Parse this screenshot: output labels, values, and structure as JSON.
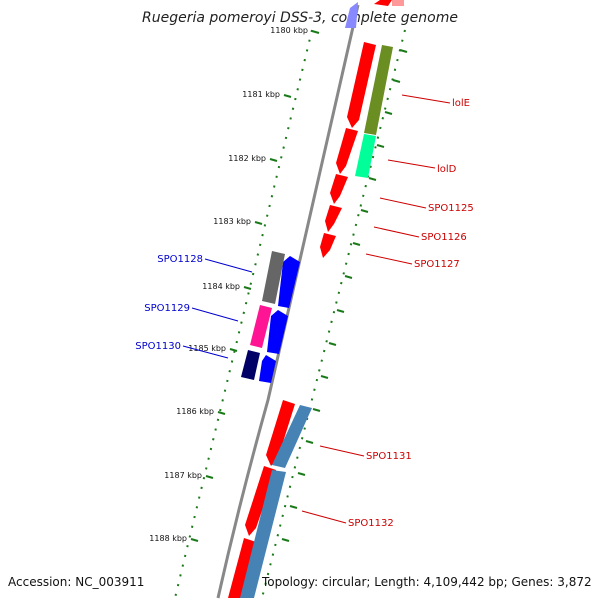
{
  "title": "Ruegeria pomeroyi DSS-3, complete genome",
  "footer": {
    "accession": "Accession: NC_003911",
    "summary": "Topology: circular; Length: 4,109,442 bp; Genes: 3,872"
  },
  "colors": {
    "backbone": "#888888",
    "tick": "#1a7a1a",
    "forward_label": "#cc0000",
    "reverse_label": "#0000cc",
    "red_cds": "#ff0000",
    "blue_cds": "#0000ff",
    "olive": "#6b8e23",
    "mint": "#00ff99",
    "gray": "#666666",
    "pink": "#ff1493",
    "navy": "#000066",
    "steel": "#4682b4"
  },
  "ticks": [
    {
      "label": "1180 kbp"
    },
    {
      "label": "1181 kbp"
    },
    {
      "label": "1182 kbp"
    },
    {
      "label": "1183 kbp"
    },
    {
      "label": "1184 kbp"
    },
    {
      "label": "1185 kbp"
    },
    {
      "label": "1186 kbp"
    },
    {
      "label": "1187 kbp"
    },
    {
      "label": "1188 kbp"
    }
  ],
  "gene_labels": [
    {
      "text": "lolE",
      "strand": "forward"
    },
    {
      "text": "lolD",
      "strand": "forward"
    },
    {
      "text": "SPO1125",
      "strand": "forward"
    },
    {
      "text": "SPO1126",
      "strand": "forward"
    },
    {
      "text": "SPO1127",
      "strand": "forward"
    },
    {
      "text": "SPO1128",
      "strand": "reverse"
    },
    {
      "text": "SPO1129",
      "strand": "reverse"
    },
    {
      "text": "SPO1130",
      "strand": "reverse"
    },
    {
      "text": "SPO1131",
      "strand": "forward"
    },
    {
      "text": "SPO1132",
      "strand": "forward"
    }
  ]
}
